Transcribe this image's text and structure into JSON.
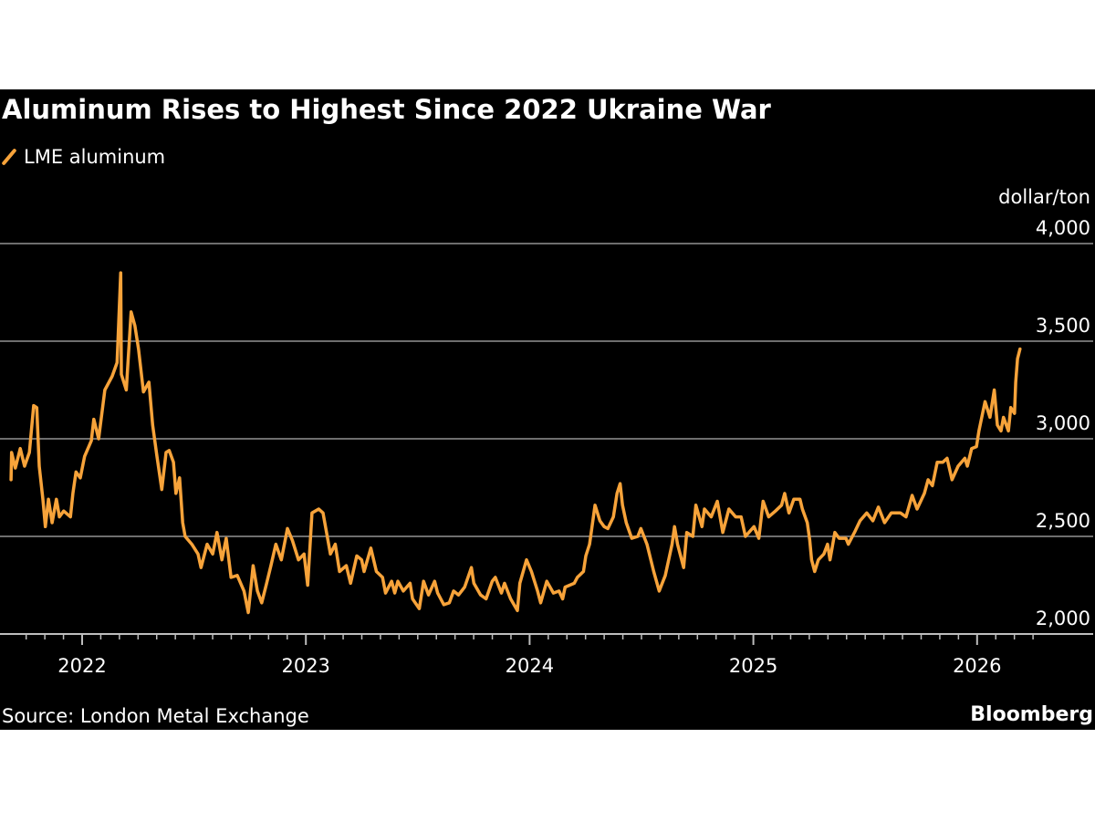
{
  "chart_data": {
    "type": "line",
    "title": "Aluminum Rises to Highest Since 2022 Ukraine War",
    "ylabel": "dollar/ton",
    "xlabel": "",
    "ylim": [
      2000,
      4000
    ],
    "yticks": [
      2000,
      2500,
      3000,
      3500,
      4000
    ],
    "ytick_labels": [
      "2,000",
      "2,500",
      "3,000",
      "3,500",
      "4,000"
    ],
    "xticks": [
      "2022",
      "2023",
      "2024",
      "2025",
      "2026"
    ],
    "grid": "horizontal",
    "legend_position": "top-left",
    "source": "Source: London Metal Exchange",
    "brand": "Bloomberg",
    "series": [
      {
        "name": "LME aluminum",
        "color": "#f7a33a",
        "points": [
          [
            "2021-09-07",
            2790
          ],
          [
            "2021-09-08",
            2930
          ],
          [
            "2021-09-14",
            2850
          ],
          [
            "2021-09-22",
            2950
          ],
          [
            "2021-09-29",
            2860
          ],
          [
            "2021-10-07",
            2930
          ],
          [
            "2021-10-14",
            3170
          ],
          [
            "2021-10-19",
            3160
          ],
          [
            "2021-10-23",
            2860
          ],
          [
            "2021-10-29",
            2690
          ],
          [
            "2021-11-02",
            2550
          ],
          [
            "2021-11-07",
            2690
          ],
          [
            "2021-11-13",
            2570
          ],
          [
            "2021-11-20",
            2690
          ],
          [
            "2021-11-25",
            2600
          ],
          [
            "2021-12-02",
            2630
          ],
          [
            "2021-12-13",
            2600
          ],
          [
            "2021-12-17",
            2720
          ],
          [
            "2021-12-22",
            2830
          ],
          [
            "2021-12-29",
            2800
          ],
          [
            "2022-01-05",
            2910
          ],
          [
            "2022-01-16",
            2990
          ],
          [
            "2022-01-20",
            3100
          ],
          [
            "2022-01-28",
            3000
          ],
          [
            "2022-02-07",
            3250
          ],
          [
            "2022-02-19",
            3320
          ],
          [
            "2022-02-27",
            3390
          ],
          [
            "2022-03-05",
            3850
          ],
          [
            "2022-03-06",
            3330
          ],
          [
            "2022-03-14",
            3250
          ],
          [
            "2022-03-19",
            3500
          ],
          [
            "2022-03-22",
            3650
          ],
          [
            "2022-03-28",
            3580
          ],
          [
            "2022-04-03",
            3460
          ],
          [
            "2022-04-11",
            3240
          ],
          [
            "2022-04-20",
            3290
          ],
          [
            "2022-04-26",
            3070
          ],
          [
            "2022-05-03",
            2910
          ],
          [
            "2022-05-11",
            2740
          ],
          [
            "2022-05-18",
            2930
          ],
          [
            "2022-05-23",
            2940
          ],
          [
            "2022-05-30",
            2880
          ],
          [
            "2022-06-03",
            2720
          ],
          [
            "2022-06-09",
            2800
          ],
          [
            "2022-06-14",
            2570
          ],
          [
            "2022-06-18",
            2500
          ],
          [
            "2022-06-29",
            2460
          ],
          [
            "2022-07-09",
            2410
          ],
          [
            "2022-07-14",
            2340
          ],
          [
            "2022-07-24",
            2460
          ],
          [
            "2022-08-02",
            2410
          ],
          [
            "2022-08-09",
            2520
          ],
          [
            "2022-08-17",
            2380
          ],
          [
            "2022-08-24",
            2490
          ],
          [
            "2022-09-01",
            2290
          ],
          [
            "2022-09-11",
            2300
          ],
          [
            "2022-09-22",
            2220
          ],
          [
            "2022-09-29",
            2110
          ],
          [
            "2022-10-07",
            2350
          ],
          [
            "2022-10-14",
            2220
          ],
          [
            "2022-10-21",
            2160
          ],
          [
            "2022-10-29",
            2260
          ],
          [
            "2022-11-05",
            2350
          ],
          [
            "2022-11-13",
            2460
          ],
          [
            "2022-11-22",
            2380
          ],
          [
            "2022-12-02",
            2540
          ],
          [
            "2022-12-10",
            2480
          ],
          [
            "2022-12-20",
            2380
          ],
          [
            "2022-12-29",
            2410
          ],
          [
            "2023-01-04",
            2250
          ],
          [
            "2023-01-11",
            2620
          ],
          [
            "2023-01-22",
            2640
          ],
          [
            "2023-01-29",
            2620
          ],
          [
            "2023-02-10",
            2410
          ],
          [
            "2023-02-18",
            2460
          ],
          [
            "2023-02-25",
            2320
          ],
          [
            "2023-03-08",
            2350
          ],
          [
            "2023-03-15",
            2260
          ],
          [
            "2023-03-25",
            2400
          ],
          [
            "2023-04-02",
            2380
          ],
          [
            "2023-04-06",
            2320
          ],
          [
            "2023-04-17",
            2440
          ],
          [
            "2023-04-26",
            2320
          ],
          [
            "2023-05-06",
            2290
          ],
          [
            "2023-05-11",
            2210
          ],
          [
            "2023-05-21",
            2270
          ],
          [
            "2023-05-26",
            2210
          ],
          [
            "2023-05-31",
            2270
          ],
          [
            "2023-06-09",
            2220
          ],
          [
            "2023-06-20",
            2260
          ],
          [
            "2023-06-24",
            2180
          ],
          [
            "2023-07-05",
            2130
          ],
          [
            "2023-07-12",
            2270
          ],
          [
            "2023-07-20",
            2200
          ],
          [
            "2023-07-30",
            2270
          ],
          [
            "2023-08-04",
            2210
          ],
          [
            "2023-08-14",
            2150
          ],
          [
            "2023-08-23",
            2160
          ],
          [
            "2023-08-30",
            2220
          ],
          [
            "2023-09-07",
            2200
          ],
          [
            "2023-09-17",
            2240
          ],
          [
            "2023-09-28",
            2340
          ],
          [
            "2023-10-02",
            2260
          ],
          [
            "2023-10-13",
            2200
          ],
          [
            "2023-10-22",
            2180
          ],
          [
            "2023-11-01",
            2270
          ],
          [
            "2023-11-06",
            2290
          ],
          [
            "2023-11-16",
            2210
          ],
          [
            "2023-11-21",
            2260
          ],
          [
            "2023-12-01",
            2180
          ],
          [
            "2023-12-12",
            2120
          ],
          [
            "2023-12-16",
            2260
          ],
          [
            "2023-12-27",
            2380
          ],
          [
            "2024-01-04",
            2320
          ],
          [
            "2024-01-14",
            2220
          ],
          [
            "2024-01-19",
            2160
          ],
          [
            "2024-01-29",
            2270
          ],
          [
            "2024-02-09",
            2210
          ],
          [
            "2024-02-18",
            2220
          ],
          [
            "2024-02-24",
            2180
          ],
          [
            "2024-02-28",
            2240
          ],
          [
            "2024-03-14",
            2260
          ],
          [
            "2024-03-19",
            2290
          ],
          [
            "2024-03-29",
            2320
          ],
          [
            "2024-04-02",
            2400
          ],
          [
            "2024-04-08",
            2460
          ],
          [
            "2024-04-17",
            2660
          ],
          [
            "2024-04-25",
            2580
          ],
          [
            "2024-05-02",
            2550
          ],
          [
            "2024-05-08",
            2540
          ],
          [
            "2024-05-17",
            2600
          ],
          [
            "2024-05-23",
            2720
          ],
          [
            "2024-05-28",
            2770
          ],
          [
            "2024-06-01",
            2660
          ],
          [
            "2024-06-07",
            2570
          ],
          [
            "2024-06-16",
            2490
          ],
          [
            "2024-06-26",
            2500
          ],
          [
            "2024-07-01",
            2540
          ],
          [
            "2024-07-11",
            2460
          ],
          [
            "2024-07-22",
            2320
          ],
          [
            "2024-07-31",
            2220
          ],
          [
            "2024-08-10",
            2300
          ],
          [
            "2024-08-21",
            2460
          ],
          [
            "2024-08-25",
            2550
          ],
          [
            "2024-08-30",
            2460
          ],
          [
            "2024-09-09",
            2340
          ],
          [
            "2024-09-14",
            2520
          ],
          [
            "2024-09-24",
            2500
          ],
          [
            "2024-09-29",
            2660
          ],
          [
            "2024-10-09",
            2550
          ],
          [
            "2024-10-13",
            2640
          ],
          [
            "2024-10-24",
            2600
          ],
          [
            "2024-11-03",
            2680
          ],
          [
            "2024-11-12",
            2520
          ],
          [
            "2024-11-22",
            2640
          ],
          [
            "2024-12-03",
            2600
          ],
          [
            "2024-12-12",
            2600
          ],
          [
            "2024-12-19",
            2500
          ],
          [
            "2025-01-02",
            2550
          ],
          [
            "2025-01-10",
            2490
          ],
          [
            "2025-01-17",
            2680
          ],
          [
            "2025-01-26",
            2600
          ],
          [
            "2025-02-06",
            2630
          ],
          [
            "2025-02-16",
            2660
          ],
          [
            "2025-02-21",
            2720
          ],
          [
            "2025-02-28",
            2620
          ],
          [
            "2025-03-08",
            2690
          ],
          [
            "2025-03-18",
            2690
          ],
          [
            "2025-03-22",
            2640
          ],
          [
            "2025-03-30",
            2570
          ],
          [
            "2025-04-03",
            2480
          ],
          [
            "2025-04-06",
            2380
          ],
          [
            "2025-04-11",
            2320
          ],
          [
            "2025-04-17",
            2380
          ],
          [
            "2025-04-26",
            2410
          ],
          [
            "2025-05-02",
            2460
          ],
          [
            "2025-05-06",
            2380
          ],
          [
            "2025-05-14",
            2520
          ],
          [
            "2025-05-21",
            2490
          ],
          [
            "2025-06-01",
            2490
          ],
          [
            "2025-06-05",
            2460
          ],
          [
            "2025-06-15",
            2520
          ],
          [
            "2025-06-24",
            2580
          ],
          [
            "2025-07-05",
            2620
          ],
          [
            "2025-07-15",
            2580
          ],
          [
            "2025-07-24",
            2650
          ],
          [
            "2025-08-03",
            2570
          ],
          [
            "2025-08-14",
            2620
          ],
          [
            "2025-08-29",
            2620
          ],
          [
            "2025-09-07",
            2600
          ],
          [
            "2025-09-17",
            2710
          ],
          [
            "2025-09-25",
            2640
          ],
          [
            "2025-10-07",
            2720
          ],
          [
            "2025-10-13",
            2790
          ],
          [
            "2025-10-20",
            2760
          ],
          [
            "2025-10-28",
            2880
          ],
          [
            "2025-11-06",
            2880
          ],
          [
            "2025-11-13",
            2900
          ],
          [
            "2025-11-21",
            2790
          ],
          [
            "2025-12-01",
            2860
          ],
          [
            "2025-12-12",
            2900
          ],
          [
            "2025-12-16",
            2860
          ],
          [
            "2025-12-23",
            2950
          ],
          [
            "2025-12-31",
            2960
          ],
          [
            "2026-01-04",
            3040
          ],
          [
            "2026-01-10",
            3130
          ],
          [
            "2026-01-14",
            3190
          ],
          [
            "2026-01-22",
            3110
          ],
          [
            "2026-01-29",
            3250
          ],
          [
            "2026-02-03",
            3070
          ],
          [
            "2026-02-09",
            3040
          ],
          [
            "2026-02-13",
            3110
          ],
          [
            "2026-02-21",
            3040
          ],
          [
            "2026-02-25",
            3160
          ],
          [
            "2026-03-03",
            3130
          ],
          [
            "2026-03-05",
            3290
          ],
          [
            "2026-03-08",
            3410
          ],
          [
            "2026-03-12",
            3460
          ]
        ]
      }
    ]
  }
}
